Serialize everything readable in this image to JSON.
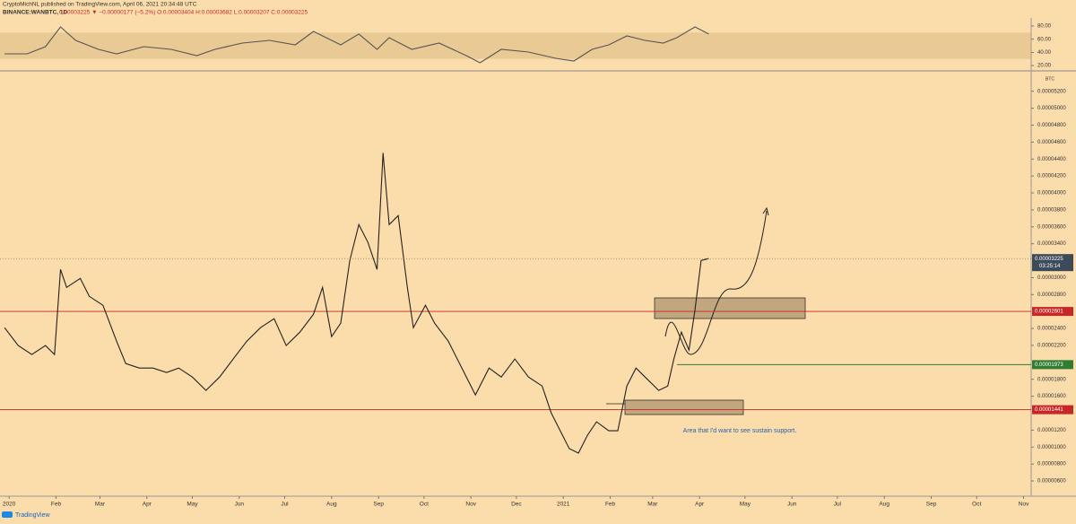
{
  "header": {
    "publisher": "CryptoMichNL published on TradingView.com, April 06, 2021 20:34:48 UTC",
    "symbol": "BINANCE:WANBTC, 1D",
    "quote": "0.00003225 ▼ −0.00000177 (−5.2%) O:0.00003404 H:0.00003682 L:0.00003207 C:0.00003225"
  },
  "footer": {
    "brand": "TradingView"
  },
  "chart_data": [
    {
      "type": "line",
      "name": "RSI",
      "color": "#555555",
      "band": [
        30,
        70
      ],
      "x": [
        -3,
        12,
        24,
        34,
        44,
        59,
        71,
        89,
        107,
        124,
        136,
        154,
        172,
        189,
        201,
        219,
        231,
        243,
        251,
        266,
        284,
        302,
        311,
        325,
        343,
        361,
        373,
        385,
        396,
        408,
        420,
        432,
        441,
        453,
        462
      ],
      "values": [
        37.8,
        37.8,
        48.7,
        78.6,
        58.2,
        44.6,
        37.8,
        48.7,
        44.6,
        35.1,
        44.6,
        54.1,
        58.2,
        51.4,
        71.8,
        51.4,
        67.8,
        44.6,
        62.3,
        44.6,
        54.1,
        35.1,
        24.2,
        44.6,
        40.5,
        31.0,
        26.9,
        44.6,
        51.4,
        65.0,
        58.2,
        54.1,
        62.3,
        78.6,
        67.8
      ],
      "ylim": [
        13.3,
        89.5
      ],
      "yticks": [
        {
          "value": 80,
          "label": "80.00"
        },
        {
          "value": 60,
          "label": "60.00"
        },
        {
          "value": 40,
          "label": "40.00"
        },
        {
          "value": 20,
          "label": "20.00"
        }
      ],
      "xlim": [
        -6,
        675
      ]
    },
    {
      "type": "line",
      "name": "WANBTC",
      "color": "#222222",
      "axis_unit": "BTC",
      "x": [
        -3,
        6,
        15,
        24,
        30,
        34,
        38,
        47,
        53,
        62,
        71,
        77,
        86,
        95,
        104,
        112,
        121,
        130,
        139,
        148,
        157,
        166,
        175,
        183,
        192,
        201,
        207,
        213,
        219,
        225,
        231,
        237,
        243,
        247,
        251,
        257,
        263,
        267,
        275,
        281,
        290,
        299,
        308,
        317,
        325,
        334,
        343,
        352,
        358,
        364,
        370,
        376,
        382,
        388,
        396,
        402,
        408,
        414,
        420,
        429,
        435,
        439,
        444,
        449,
        453,
        457,
        462
      ],
      "values": [
        2.409e-05,
        2.198e-05,
        2.092e-05,
        2.198e-05,
        2.092e-05,
        3.097e-05,
        2.885e-05,
        2.991e-05,
        2.779e-05,
        2.674e-05,
        2.25e-05,
        1.986e-05,
        1.933e-05,
        1.933e-05,
        1.88e-05,
        1.933e-05,
        1.827e-05,
        1.669e-05,
        1.827e-05,
        2.039e-05,
        2.25e-05,
        2.409e-05,
        2.515e-05,
        2.198e-05,
        2.356e-05,
        2.568e-05,
        2.885e-05,
        2.303e-05,
        2.462e-05,
        3.203e-05,
        3.626e-05,
        3.414e-05,
        3.097e-05,
        4.472e-05,
        3.626e-05,
        3.732e-05,
        2.885e-05,
        2.409e-05,
        2.674e-05,
        2.462e-05,
        2.25e-05,
        1.933e-05,
        1.616e-05,
        1.933e-05,
        1.827e-05,
        2.039e-05,
        1.827e-05,
        1.721e-05,
        1.404e-05,
        1.192e-05,
        9.81e-06,
        9.28e-06,
        1.14e-05,
        1.298e-05,
        1.192e-05,
        1.192e-05,
        1.721e-05,
        1.933e-05,
        1.827e-05,
        1.669e-05,
        1.721e-05,
        2.039e-05,
        2.356e-05,
        2.145e-05,
        2.621e-05,
        3.203e-05,
        3.225e-05
      ],
      "ylim": [
        4.2e-06,
        5.43e-05
      ],
      "yticks": [
        {
          "value": 5.2e-05,
          "label": "0.00005200"
        },
        {
          "value": 5e-05,
          "label": "0.00005000"
        },
        {
          "value": 4.8e-05,
          "label": "0.00004800"
        },
        {
          "value": 4.6e-05,
          "label": "0.00004600"
        },
        {
          "value": 4.4e-05,
          "label": "0.00004400"
        },
        {
          "value": 4.2e-05,
          "label": "0.00004200"
        },
        {
          "value": 4e-05,
          "label": "0.00004000"
        },
        {
          "value": 3.8e-05,
          "label": "0.00003800"
        },
        {
          "value": 3.6e-05,
          "label": "0.00003600"
        },
        {
          "value": 3.4e-05,
          "label": "0.00003400"
        },
        {
          "value": 3e-05,
          "label": "0.00003000"
        },
        {
          "value": 2.8e-05,
          "label": "0.00002800"
        },
        {
          "value": 2.4e-05,
          "label": "0.00002400"
        },
        {
          "value": 2.2e-05,
          "label": "0.00002200"
        },
        {
          "value": 1.8e-05,
          "label": "0.00001800"
        },
        {
          "value": 1.6e-05,
          "label": "0.00001600"
        },
        {
          "value": 1.2e-05,
          "label": "0.00001200"
        },
        {
          "value": 1e-05,
          "label": "0.00001000"
        },
        {
          "value": 8e-06,
          "label": "0.00000800"
        },
        {
          "value": 6e-06,
          "label": "0.00000600"
        }
      ],
      "xlim": [
        -6,
        675
      ],
      "xticks": [
        {
          "value": 0,
          "label": "2020"
        },
        {
          "value": 31,
          "label": "Feb"
        },
        {
          "value": 60,
          "label": "Mar"
        },
        {
          "value": 91,
          "label": "Apr"
        },
        {
          "value": 121,
          "label": "May"
        },
        {
          "value": 152,
          "label": "Jun"
        },
        {
          "value": 182,
          "label": "Jul"
        },
        {
          "value": 213,
          "label": "Aug"
        },
        {
          "value": 244,
          "label": "Sep"
        },
        {
          "value": 274,
          "label": "Oct"
        },
        {
          "value": 305,
          "label": "Nov"
        },
        {
          "value": 335,
          "label": "Dec"
        },
        {
          "value": 366,
          "label": "2021"
        },
        {
          "value": 397,
          "label": "Feb"
        },
        {
          "value": 425,
          "label": "Mar"
        },
        {
          "value": 456,
          "label": "Apr"
        },
        {
          "value": 486,
          "label": "May"
        },
        {
          "value": 517,
          "label": "Jun"
        },
        {
          "value": 547,
          "label": "Jul"
        },
        {
          "value": 578,
          "label": "Aug"
        },
        {
          "value": 609,
          "label": "Sep"
        },
        {
          "value": 639,
          "label": "Oct"
        },
        {
          "value": 670,
          "label": "Nov"
        }
      ],
      "last_price": {
        "value": 3.225e-05,
        "countdown": "03:25:14",
        "color": "#3c4a5a"
      },
      "levels": [
        {
          "value": 2.601e-05,
          "color": "#c62828"
        },
        {
          "value": 1.973e-05,
          "color": "#2e7d32"
        },
        {
          "value": 1.441e-05,
          "color": "#c62828"
        }
      ],
      "annotation": "Area that I'd want to see sustain support."
    }
  ]
}
